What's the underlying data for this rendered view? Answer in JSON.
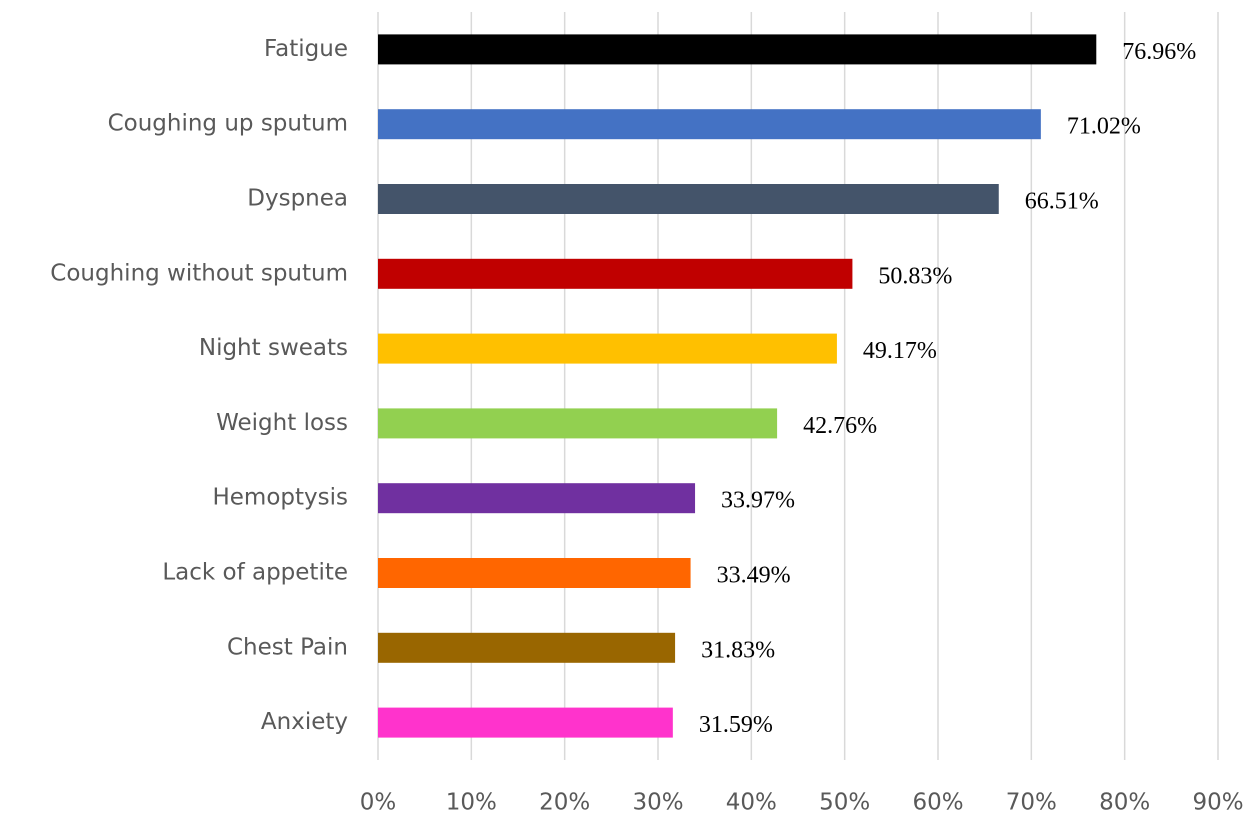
{
  "chart_data": {
    "type": "bar",
    "orientation": "horizontal",
    "categories": [
      "Fatigue",
      "Coughing up sputum",
      "Dyspnea",
      "Coughing without sputum",
      "Night sweats",
      "Weight loss",
      "Hemoptysis",
      "Lack of appetite",
      "Chest Pain",
      "Anxiety"
    ],
    "values": [
      76.96,
      71.02,
      66.51,
      50.83,
      49.17,
      42.76,
      33.97,
      33.49,
      31.83,
      31.59
    ],
    "value_labels": [
      "76.96%",
      "71.02%",
      "66.51%",
      "50.83%",
      "49.17%",
      "42.76%",
      "33.97%",
      "33.49%",
      "31.83%",
      "31.59%"
    ],
    "colors": [
      "#000000",
      "#4472c4",
      "#44546a",
      "#c00000",
      "#ffc000",
      "#92d050",
      "#7030a0",
      "#ff6600",
      "#996600",
      "#ff33cc"
    ],
    "xlim": [
      0,
      90
    ],
    "xticks": [
      {
        "value": 0,
        "label": "0%"
      },
      {
        "value": 10,
        "label": "10%"
      },
      {
        "value": 20,
        "label": "20%"
      },
      {
        "value": 30,
        "label": "30%"
      },
      {
        "value": 40,
        "label": "40%"
      },
      {
        "value": 50,
        "label": "50%"
      },
      {
        "value": 60,
        "label": "60%"
      },
      {
        "value": 70,
        "label": "70%"
      },
      {
        "value": 80,
        "label": "80%"
      },
      {
        "value": 90,
        "label": "90%"
      }
    ],
    "grid": true
  }
}
